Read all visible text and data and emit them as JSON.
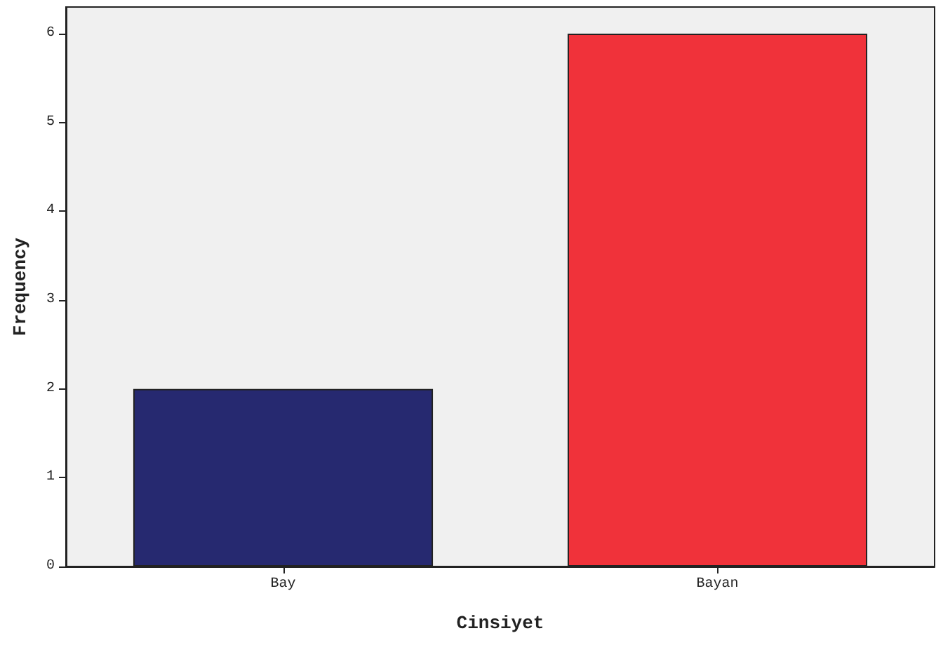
{
  "chart_data": {
    "type": "bar",
    "xlabel": "Cinsiyet",
    "ylabel": "Frequency",
    "categories": [
      "Bay",
      "Bayan"
    ],
    "values": [
      2,
      6
    ],
    "colors": [
      "#262970",
      "#f0323a"
    ],
    "ylim": [
      0,
      6.3
    ],
    "yticks": [
      0,
      1,
      2,
      3,
      4,
      5,
      6
    ]
  }
}
